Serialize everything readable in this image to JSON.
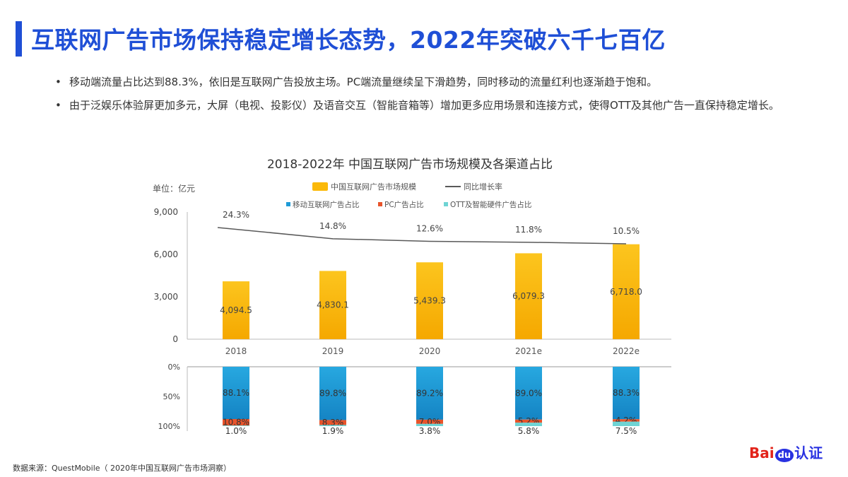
{
  "header": {
    "title": "互联网广告市场保持稳定增长态势，2022年突破六千七百亿"
  },
  "bullets": [
    "移动端流量占比达到88.3%，依旧是互联网广告投放主场。PC端流量继续呈下滑趋势，同时移动的流量红利也逐渐趋于饱和。",
    "由于泛娱乐体验屏更加多元，大屏（电视、投影仪）及语音交互（智能音箱等）增加更多应用场景和连接方式，使得OTT及其他广告一直保持稳定增长。"
  ],
  "source": "数据来源：QuestMobile（  2020年中国互联网广告市场洞察）",
  "logo": {
    "text": "Baidu认证",
    "colors": {
      "bai": "#e2231a",
      "du": "#2932e1"
    }
  },
  "chart_data": [
    {
      "type": "bar",
      "title": "2018-2022年 中国互联网广告市场规模及各渠道占比",
      "unit_label": "单位：亿元",
      "categories": [
        "2018",
        "2019",
        "2020",
        "2021e",
        "2022e"
      ],
      "ylim": [
        0,
        9000
      ],
      "yticks": [
        "0",
        "3,000",
        "6,000",
        "9,000"
      ],
      "series": [
        {
          "name": "中国互联网广告市场规模",
          "type": "bar",
          "color": "#fbb909",
          "values": [
            4094.5,
            4830.1,
            5439.3,
            6079.3,
            6718.0
          ],
          "labels": [
            "4,094.5",
            "4,830.1",
            "5,439.3",
            "6,079.3",
            "6,718.0"
          ]
        },
        {
          "name": "同比增长率",
          "type": "line",
          "color": "#595959",
          "values": [
            24.3,
            14.8,
            12.6,
            11.8,
            10.5
          ],
          "labels": [
            "24.3%",
            "14.8%",
            "12.6%",
            "11.8%",
            "10.5%"
          ]
        }
      ],
      "legend": "top"
    },
    {
      "type": "bar",
      "stacked": true,
      "categories": [
        "2018",
        "2019",
        "2020",
        "2021e",
        "2022e"
      ],
      "ylim": [
        0,
        100
      ],
      "yticks": [
        "0%",
        "50%",
        "100%"
      ],
      "series": [
        {
          "name": "移动互联网广告占比",
          "color": "#1e9bd7",
          "values": [
            88.1,
            89.8,
            89.2,
            89.0,
            88.3
          ],
          "labels": [
            "88.1%",
            "89.8%",
            "89.2%",
            "89.0%",
            "88.3%"
          ]
        },
        {
          "name": "PC广告占比",
          "color": "#e8542b",
          "values": [
            10.8,
            8.3,
            7.0,
            5.2,
            4.2
          ],
          "labels": [
            "10.8%",
            "8.3%",
            "7.0%",
            "5.2%",
            "4.2%"
          ]
        },
        {
          "name": "OTT及智能硬件广告占比",
          "color": "#6fd4d4",
          "values": [
            1.0,
            1.9,
            3.8,
            5.8,
            7.5
          ],
          "labels": [
            "1.0%",
            "1.9%",
            "3.8%",
            "5.8%",
            "7.5%"
          ]
        }
      ],
      "legend": "top"
    }
  ]
}
